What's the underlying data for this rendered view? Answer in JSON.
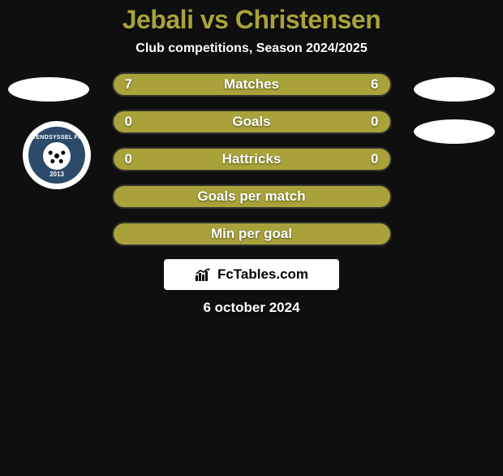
{
  "colors": {
    "background": "#0f0f0f",
    "title": "#a9a23a",
    "subtitle_text": "#ffffff",
    "bar_bg": "#a9a23a",
    "bar_border": "#31302e",
    "bar_text": "#ffffff",
    "value_text": "#ffffff",
    "ellipse": "#ffffff",
    "badge_outer": "#ffffff",
    "badge_inner": "#2e4a6b",
    "badge_text": "#ffffff",
    "badge_ball": "#ffffff",
    "attribution_bg": "#ffffff",
    "attribution_text": "#000000",
    "date_text": "#ffffff"
  },
  "header": {
    "title": "Jebali vs Christensen",
    "title_fontsize": 32,
    "subtitle": "Club competitions, Season 2024/2025",
    "subtitle_fontsize": 16
  },
  "badge": {
    "top_text": "VENDSYSSEL FF",
    "year": "2013"
  },
  "rows": [
    {
      "label": "Matches",
      "left": "7",
      "right": "6"
    },
    {
      "label": "Goals",
      "left": "0",
      "right": "0"
    },
    {
      "label": "Hattricks",
      "left": "0",
      "right": "0"
    },
    {
      "label": "Goals per match",
      "left": "",
      "right": ""
    },
    {
      "label": "Min per goal",
      "left": "",
      "right": ""
    }
  ],
  "row_style": {
    "label_fontsize": 17,
    "value_fontsize": 17,
    "border_width": 2
  },
  "attribution": {
    "text": "FcTables.com",
    "fontsize": 17,
    "icon": "bar-chart-up-icon"
  },
  "date": {
    "text": "6 october 2024",
    "fontsize": 17
  }
}
